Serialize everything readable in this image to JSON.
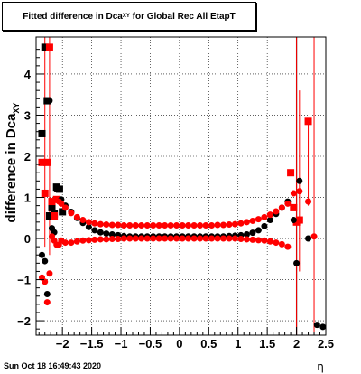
{
  "chart_data": {
    "type": "scatter",
    "title": {
      "main": "Fitted difference in Dca",
      "subscript": "XY",
      "rest": " for Global Rec All EtapT"
    },
    "ylabel": {
      "main": "difference in Dca",
      "subscript": "XY"
    },
    "xlabel": "η",
    "xlim": [
      -2.45,
      2.5
    ],
    "ylim": [
      -2.35,
      4.9
    ],
    "grid": true,
    "xticks": [
      -2,
      -1.5,
      -1,
      -0.5,
      0,
      0.5,
      1,
      1.5,
      2,
      2.5
    ],
    "xtick_labels": [
      "−2",
      "−1.5",
      "−1",
      "−0.5",
      "0",
      "0.5",
      "1",
      "1.5",
      "2",
      "2.5"
    ],
    "yticks": [
      -2,
      -1,
      0,
      1,
      2,
      3,
      4
    ],
    "ytick_labels": [
      "−2",
      "−1",
      "0",
      "1",
      "2",
      "3",
      "4"
    ],
    "vertical_lines": [
      2.0
    ],
    "series": [
      {
        "color": "#000000",
        "marker": "square",
        "x": [
          -2.35,
          -2.3,
          -2.26,
          -2.22,
          -2.18,
          -2.14,
          -2.1,
          -2.05,
          -2.0
        ],
        "y": [
          2.55,
          4.65,
          3.35,
          0.55,
          0.75,
          0.6,
          1.25,
          1.2,
          0.65
        ]
      },
      {
        "color": "#ff0000",
        "marker": "square",
        "x": [
          -2.35,
          -2.3,
          -2.26,
          -2.22,
          -2.18,
          -2.14,
          -2.1,
          1.9,
          1.95,
          2.0,
          2.05,
          2.2
        ],
        "y": [
          1.85,
          1.1,
          1.85,
          4.65,
          0.9,
          0.55,
          0.95,
          1.6,
          0.75,
          0.4,
          0.45,
          2.85
        ]
      },
      {
        "color": "#000000",
        "marker": "circle",
        "x": [
          -2.35,
          -2.3,
          -2.26,
          -2.22,
          -2.18,
          -2.14,
          -2.1,
          -2.06,
          -2.02,
          -1.95,
          -1.85,
          -1.75,
          -1.65,
          -1.55,
          -1.45,
          -1.35,
          -1.25,
          -1.15,
          -1.05,
          -0.95,
          -0.85,
          -0.75,
          -0.65,
          -0.55,
          -0.45,
          -0.35,
          -0.25,
          -0.15,
          -0.05,
          0.05,
          0.15,
          0.25,
          0.35,
          0.45,
          0.55,
          0.65,
          0.75,
          0.85,
          0.95,
          1.05,
          1.15,
          1.25,
          1.35,
          1.45,
          1.55,
          1.65,
          1.75,
          1.85,
          1.95,
          2.0,
          2.05,
          2.2,
          2.35,
          2.45
        ],
        "y": [
          -0.4,
          -0.55,
          -1.35,
          3.35,
          0.25,
          0.15,
          1.2,
          1.2,
          0.95,
          0.8,
          0.65,
          0.5,
          0.38,
          0.28,
          0.2,
          0.15,
          0.12,
          0.1,
          0.08,
          0.06,
          0.05,
          0.05,
          0.05,
          0.05,
          0.05,
          0.05,
          0.05,
          0.05,
          0.05,
          0.05,
          0.05,
          0.05,
          0.05,
          0.05,
          0.05,
          0.05,
          0.05,
          0.06,
          0.07,
          0.08,
          0.1,
          0.14,
          0.2,
          0.3,
          0.45,
          0.6,
          0.75,
          0.9,
          0.45,
          -0.6,
          1.4,
          0.0,
          -2.1,
          -2.15
        ]
      },
      {
        "color": "#ff0000",
        "marker": "circle",
        "x": [
          -2.35,
          -2.3,
          -2.26,
          -2.22,
          -2.18,
          -2.14,
          -2.1,
          -2.06,
          -2.02,
          -1.95,
          -1.85,
          -1.75,
          -1.65,
          -1.55,
          -1.45,
          -1.35,
          -1.25,
          -1.15,
          -1.05,
          -0.95,
          -0.85,
          -0.75,
          -0.65,
          -0.55,
          -0.45,
          -0.35,
          -0.25,
          -0.15,
          -0.05,
          0.05,
          0.15,
          0.25,
          0.35,
          0.45,
          0.55,
          0.65,
          0.75,
          0.85,
          0.95,
          1.05,
          1.15,
          1.25,
          1.35,
          1.45,
          1.55,
          1.65,
          1.75,
          1.85,
          1.95,
          2.05,
          2.2,
          2.3
        ],
        "y": [
          -0.95,
          -1.05,
          -1.55,
          -0.85,
          0.05,
          -0.05,
          -0.15,
          0.9,
          0.85,
          0.75,
          0.62,
          0.52,
          0.45,
          0.4,
          0.37,
          0.35,
          0.34,
          0.33,
          0.33,
          0.32,
          0.32,
          0.32,
          0.32,
          0.32,
          0.32,
          0.32,
          0.32,
          0.32,
          0.32,
          0.32,
          0.32,
          0.32,
          0.32,
          0.32,
          0.32,
          0.33,
          0.33,
          0.34,
          0.35,
          0.37,
          0.4,
          0.43,
          0.47,
          0.52,
          0.58,
          0.66,
          0.75,
          0.85,
          1.1,
          1.15,
          0.9,
          0.05
        ]
      },
      {
        "color": "#ff0000",
        "marker": "circle",
        "x": [
          -2.06,
          -2.02,
          -1.95,
          -1.85,
          -1.75,
          -1.65,
          -1.55,
          -1.45,
          -1.35,
          -1.25,
          -1.15,
          -1.05,
          -0.95,
          -0.85,
          -0.75,
          -0.65,
          -0.55,
          -0.45,
          -0.35,
          -0.25,
          -0.15,
          -0.05,
          0.05,
          0.15,
          0.25,
          0.35,
          0.45,
          0.55,
          0.65,
          0.75,
          0.85,
          0.95,
          1.05,
          1.15,
          1.25,
          1.35,
          1.45,
          1.55,
          1.65,
          1.75,
          1.85
        ],
        "y": [
          -0.15,
          -0.05,
          -0.1,
          -0.1,
          -0.07,
          -0.05,
          -0.04,
          -0.03,
          -0.02,
          -0.02,
          -0.01,
          -0.01,
          0.0,
          0.0,
          0.0,
          0.0,
          0.0,
          0.0,
          0.0,
          0.0,
          0.0,
          0.0,
          0.0,
          0.0,
          0.0,
          0.0,
          0.0,
          0.0,
          0.0,
          0.0,
          0.0,
          0.0,
          -0.01,
          -0.02,
          -0.03,
          -0.04,
          -0.05,
          -0.07,
          -0.1,
          -0.14,
          -0.2
        ]
      }
    ],
    "error_bars": [
      {
        "x": -2.3,
        "y_low": -0.2,
        "y_high": 4.9,
        "color": "#ff0000"
      },
      {
        "x": -2.22,
        "y_low": -0.4,
        "y_high": 4.9,
        "color": "#ff0000"
      },
      {
        "x": 2.0,
        "y_low": -2.35,
        "y_high": 4.9,
        "color": "#ff0000"
      },
      {
        "x": 2.05,
        "y_low": -0.8,
        "y_high": 3.6,
        "color": "#ff0000"
      },
      {
        "x": 2.2,
        "y_low": 0.8,
        "y_high": 2.9,
        "color": "#ff0000"
      },
      {
        "x": 2.3,
        "y_low": -2.35,
        "y_high": 4.9,
        "color": "#ff0000"
      }
    ]
  },
  "footer": {
    "date": "Sun Oct 18 16:49:43 2020"
  }
}
